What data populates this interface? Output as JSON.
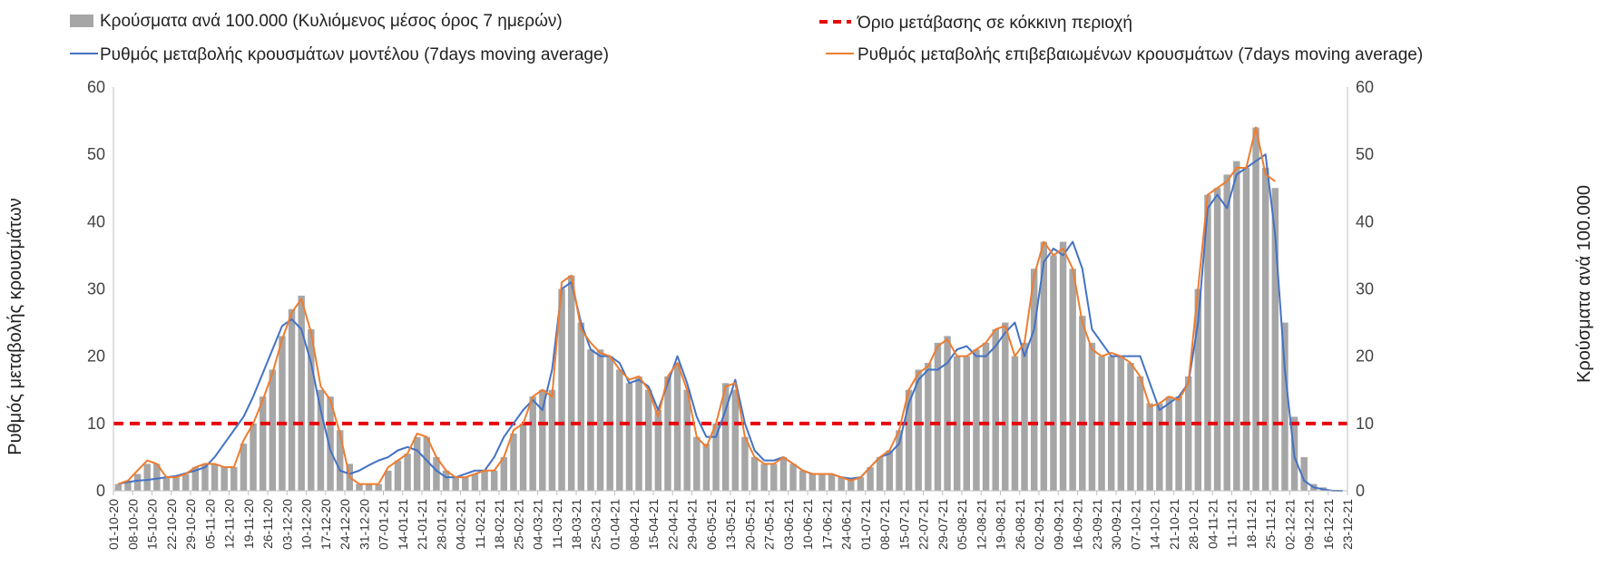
{
  "chart_data": {
    "type": "bar+line",
    "title": "",
    "ylabel_left": "Ρυθμός μεταβολής κρουσμάτων",
    "ylabel_right": "Κρούσματα ανά 100.000",
    "ylim": [
      0,
      60
    ],
    "yticks": [
      0,
      10,
      20,
      30,
      40,
      50,
      60
    ],
    "grid": false,
    "legend": [
      {
        "key": "bars",
        "label": "Κρούσματα ανά 100.000 (Κυλιόμενος μέσος όρος 7 ημερών)",
        "color": "#a6a6a6"
      },
      {
        "key": "threshold",
        "label": "Όριο μετάβασης σε κόκκινη περιοχή",
        "color": "#e8070c"
      },
      {
        "key": "model",
        "label": "Ρυθμός μεταβολής κρουσμάτων μοντέλου (7days moving average)",
        "color": "#4472c4"
      },
      {
        "key": "confirmed",
        "label": "Ρυθμός μεταβολής επιβεβαιωμένων κρουσμάτων (7days moving average)",
        "color": "#ed7d31"
      }
    ],
    "x_start": "2020-10-01",
    "x_end": "2021-12-23",
    "x_tick_labels": [
      "01-10-20",
      "08-10-20",
      "15-10-20",
      "22-10-20",
      "29-10-20",
      "05-11-20",
      "12-11-20",
      "19-11-20",
      "26-11-20",
      "03-12-20",
      "10-12-20",
      "17-12-20",
      "24-12-20",
      "31-12-20",
      "07-01-21",
      "14-01-21",
      "21-01-21",
      "28-01-21",
      "04-02-21",
      "11-02-21",
      "18-02-21",
      "25-02-21",
      "04-03-21",
      "11-03-21",
      "18-03-21",
      "25-03-21",
      "01-04-21",
      "08-04-21",
      "15-04-21",
      "22-04-21",
      "29-04-21",
      "06-05-21",
      "13-05-21",
      "20-05-21",
      "27-05-21",
      "03-06-21",
      "10-06-21",
      "17-06-21",
      "24-06-21",
      "01-07-21",
      "08-07-21",
      "15-07-21",
      "22-07-21",
      "29-07-21",
      "05-08-21",
      "12-08-21",
      "19-08-21",
      "26-08-21",
      "02-09-21",
      "09-09-21",
      "16-09-21",
      "23-09-21",
      "30-09-21",
      "07-10-21",
      "14-10-21",
      "21-10-21",
      "28-10-21",
      "04-11-21",
      "11-11-21",
      "18-11-21",
      "25-11-21",
      "02-12-21",
      "09-12-21",
      "16-12-21",
      "23-12-21"
    ],
    "threshold": 10,
    "series": [
      {
        "name": "Κρούσματα ανά 100.000 (Κυλιόμενος μέσος όρος 7 ημερών)",
        "type": "bar",
        "values": [
          1.0,
          1.5,
          2.5,
          4.0,
          4.0,
          2.0,
          2.0,
          2.5,
          3.5,
          4.0,
          4.0,
          3.5,
          3.5,
          7.0,
          10.0,
          14.0,
          18.0,
          23.0,
          27.0,
          29.0,
          24.0,
          15.0,
          14.0,
          9.0,
          4.0,
          1.0,
          1.0,
          1.0,
          3.0,
          4.5,
          5.5,
          8.0,
          8.0,
          5.0,
          3.0,
          2.0,
          2.0,
          2.5,
          3.0,
          3.0,
          5.0,
          8.5,
          10.0,
          14.0,
          15.0,
          15.0,
          30.0,
          32.0,
          25.0,
          21.0,
          21.0,
          20.0,
          18.0,
          16.0,
          17.0,
          15.0,
          12.0,
          17.0,
          19.0,
          15.0,
          8.0,
          7.0,
          10.0,
          16.0,
          15.0,
          8.0,
          5.0,
          4.0,
          4.0,
          5.0,
          4.0,
          3.0,
          2.5,
          2.5,
          2.5,
          2.0,
          1.5,
          2.0,
          3.5,
          5.0,
          6.0,
          9.0,
          15.0,
          18.0,
          19.0,
          22.0,
          23.0,
          20.0,
          20.0,
          21.0,
          22.0,
          24.0,
          25.0,
          20.0,
          22.0,
          33.0,
          37.0,
          35.0,
          37.0,
          33.0,
          26.0,
          22.0,
          20.0,
          20.0,
          20.0,
          19.0,
          17.0,
          13.0,
          13.0,
          14.0,
          14.0,
          17.0,
          30.0,
          44.0,
          45.0,
          47.0,
          49.0,
          48.0,
          54.0,
          48.0,
          45.0,
          25.0,
          11.0,
          5.0,
          1.0,
          0.5,
          0.0,
          0.0
        ]
      },
      {
        "name": "Ρυθμός μεταβολής κρουσμάτων μοντέλου (7days moving average)",
        "type": "line",
        "values": [
          1.0,
          1.3,
          1.5,
          1.6,
          1.8,
          2.0,
          2.2,
          2.6,
          3.0,
          3.5,
          5.0,
          7.0,
          9.0,
          11.0,
          14.0,
          17.5,
          21.0,
          24.5,
          25.5,
          24.0,
          19.0,
          12.0,
          6.0,
          3.0,
          2.5,
          3.0,
          3.8,
          4.5,
          5.0,
          6.0,
          6.5,
          6.0,
          4.5,
          3.0,
          2.0,
          2.0,
          2.5,
          3.0,
          3.0,
          5.0,
          8.0,
          10.0,
          12.0,
          13.5,
          12.0,
          18.0,
          30.0,
          31.0,
          25.0,
          21.0,
          20.0,
          20.0,
          19.0,
          16.0,
          16.5,
          15.5,
          12.0,
          16.0,
          20.0,
          16.0,
          11.0,
          8.0,
          8.0,
          12.0,
          16.5,
          10.0,
          6.0,
          4.5,
          4.5,
          5.0,
          4.0,
          3.0,
          2.5,
          2.5,
          2.5,
          2.0,
          1.8,
          2.0,
          3.5,
          5.0,
          5.5,
          7.0,
          13.0,
          16.5,
          18.0,
          18.0,
          19.0,
          21.0,
          21.5,
          20.0,
          20.0,
          21.5,
          23.5,
          25.0,
          20.0,
          24.0,
          34.0,
          36.0,
          35.0,
          37.0,
          33.0,
          24.0,
          22.0,
          20.0,
          20.0,
          20.0,
          20.0,
          16.0,
          12.0,
          13.0,
          14.0,
          16.0,
          25.0,
          42.0,
          44.0,
          42.0,
          47.0,
          48.0,
          49.0,
          50.0,
          38.0,
          18.0,
          5.0,
          1.5,
          0.5,
          0.2,
          0.0,
          0.0
        ]
      },
      {
        "name": "Ρυθμός μεταβολής επιβεβαιωμένων κρουσμάτων (7days moving average)",
        "type": "line",
        "values": [
          1.0,
          1.5,
          3.0,
          4.5,
          4.0,
          2.0,
          2.0,
          2.5,
          3.5,
          4.0,
          4.0,
          3.5,
          3.5,
          7.5,
          10.0,
          13.5,
          17.5,
          22.5,
          26.5,
          28.5,
          23.5,
          15.5,
          13.5,
          8.5,
          2.0,
          1.0,
          1.0,
          1.0,
          3.5,
          4.5,
          5.5,
          8.5,
          8.0,
          5.0,
          3.0,
          2.0,
          2.0,
          2.5,
          3.0,
          3.0,
          5.0,
          9.0,
          10.0,
          14.0,
          15.0,
          14.0,
          31.0,
          32.0,
          24.0,
          22.0,
          20.5,
          20.0,
          18.0,
          16.5,
          17.0,
          15.0,
          11.0,
          17.0,
          19.0,
          15.0,
          8.0,
          6.5,
          10.0,
          15.5,
          16.0,
          8.0,
          5.0,
          4.0,
          4.0,
          5.0,
          4.0,
          3.0,
          2.5,
          2.5,
          2.5,
          2.0,
          1.5,
          2.0,
          3.5,
          5.0,
          6.0,
          9.0,
          15.0,
          17.5,
          18.5,
          21.5,
          22.5,
          20.0,
          20.0,
          21.0,
          22.0,
          24.0,
          24.5,
          20.0,
          22.0,
          32.0,
          37.0,
          35.0,
          36.0,
          33.0,
          25.0,
          21.0,
          20.0,
          20.5,
          20.0,
          19.0,
          17.0,
          12.5,
          13.0,
          14.0,
          13.5,
          16.0,
          30.0,
          44.0,
          45.0,
          46.0,
          48.0,
          48.0,
          54.0,
          47.0,
          46.0
        ]
      }
    ]
  }
}
